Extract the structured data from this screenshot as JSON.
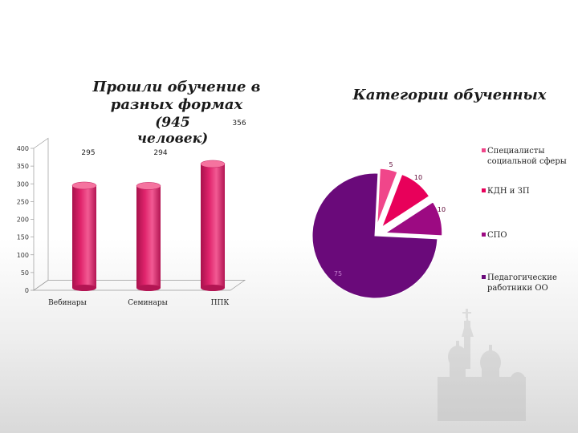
{
  "chart_data": [
    {
      "type": "bar",
      "title_lines": [
        "Прошли обучение в",
        "разных формах",
        "(945 человек)"
      ],
      "categories": [
        "Вебинары",
        "Семинары",
        "ППК"
      ],
      "values": [
        295,
        294,
        356
      ],
      "data_labels": [
        "295",
        "294",
        "356"
      ],
      "ylim": [
        0,
        400
      ],
      "yticks": [
        "0",
        "50",
        "100",
        "150",
        "200",
        "250",
        "300",
        "350",
        "400"
      ],
      "color": "#e0246c",
      "grid": false,
      "legend": "none"
    },
    {
      "type": "pie",
      "title": "Категории обученных",
      "labels": [
        "Специалисты социальной сферы",
        "КДН и ЗП",
        "СПО",
        "Педагогические работники ОО"
      ],
      "values": [
        5,
        10,
        10,
        75
      ],
      "data_labels": [
        "5",
        "10",
        "10",
        "75"
      ],
      "colors": [
        "#f0468a",
        "#e8005a",
        "#9c0a82",
        "#6a0a7a"
      ],
      "legend": "right"
    }
  ]
}
